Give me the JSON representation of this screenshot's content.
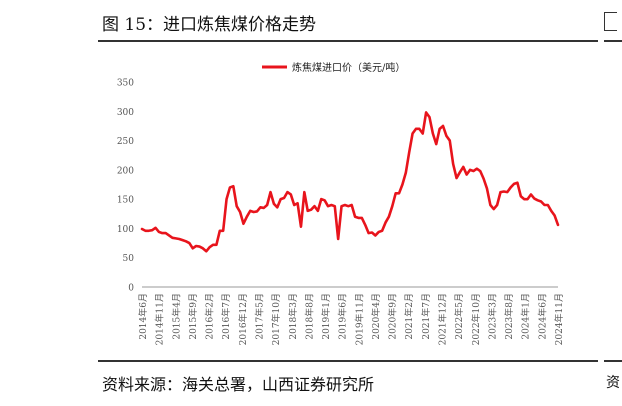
{
  "header": {
    "title": "图 15：进口炼焦煤价格走势"
  },
  "footer": {
    "source": "资料来源：海关总署，山西证券研究所"
  },
  "side": {
    "next_figure_char": "资"
  },
  "chart_data": {
    "type": "line",
    "title": "图 15：进口炼焦煤价格走势",
    "xlabel": "",
    "ylabel": "",
    "ylim": [
      0,
      350
    ],
    "yticks": [
      0,
      50,
      100,
      150,
      200,
      250,
      300,
      350
    ],
    "x_tick_labels": [
      "2014年6月",
      "2014年11月",
      "2015年4月",
      "2015年9月",
      "2016年2月",
      "2016年7月",
      "2016年12月",
      "2017年5月",
      "2017年10月",
      "2018年3月",
      "2018年8月",
      "2019年1月",
      "2019年6月",
      "2019年11月",
      "2020年4月",
      "2020年9月",
      "2021年2月",
      "2021年7月",
      "2021年12月",
      "2022年5月",
      "2022年10月",
      "2023年3月",
      "2023年8月",
      "2024年1月",
      "2024年6月",
      "2024年11月"
    ],
    "legend": "top-center",
    "series": [
      {
        "name": "炼焦煤进口价（美元/吨）",
        "color": "#e8141c",
        "values": [
          99,
          96,
          96,
          97,
          101,
          94,
          92,
          92,
          88,
          84,
          83,
          82,
          80,
          78,
          75,
          66,
          70,
          69,
          66,
          61,
          68,
          72,
          72,
          96,
          96,
          150,
          170,
          172,
          138,
          128,
          108,
          120,
          130,
          128,
          129,
          136,
          135,
          140,
          162,
          142,
          136,
          150,
          152,
          162,
          158,
          140,
          143,
          103,
          162,
          130,
          132,
          138,
          130,
          150,
          148,
          138,
          140,
          138,
          82,
          138,
          140,
          138,
          140,
          120,
          118,
          118,
          106,
          92,
          93,
          88,
          94,
          96,
          110,
          120,
          138,
          160,
          160,
          175,
          195,
          230,
          262,
          270,
          270,
          262,
          298,
          290,
          262,
          244,
          270,
          275,
          258,
          250,
          210,
          186,
          196,
          205,
          192,
          200,
          198,
          202,
          198,
          185,
          168,
          140,
          133,
          140,
          162,
          163,
          162,
          170,
          176,
          178,
          155,
          150,
          150,
          158,
          151,
          148,
          146,
          140,
          140,
          130,
          122,
          106
        ]
      }
    ]
  }
}
